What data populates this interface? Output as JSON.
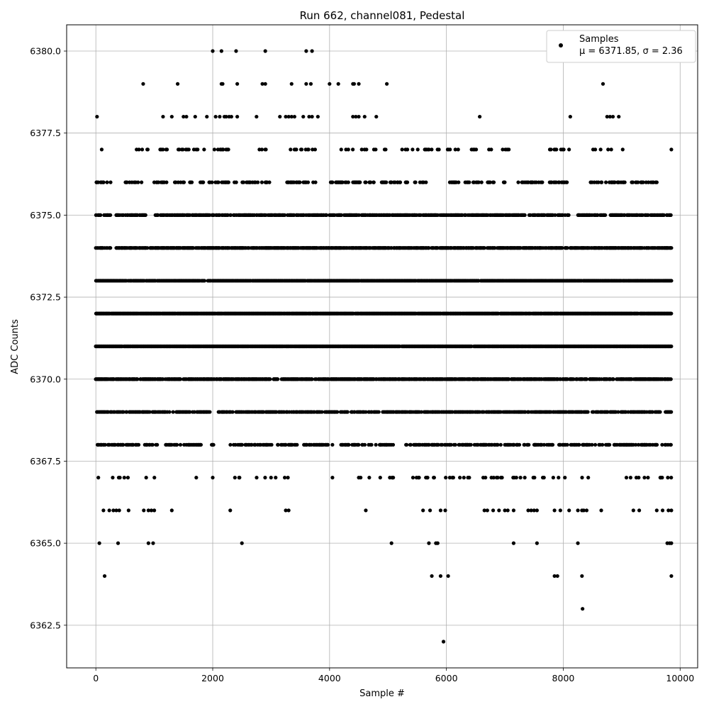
{
  "chart_data": {
    "type": "scatter",
    "title": "Run 662, channel081, Pedestal",
    "xlabel": "Sample #",
    "ylabel": "ADC Counts",
    "xlim": [
      -500,
      10300
    ],
    "ylim": [
      6361.2,
      6380.8
    ],
    "xticks": [
      0,
      2000,
      4000,
      6000,
      8000,
      10000
    ],
    "xtick_labels": [
      "0",
      "2000",
      "4000",
      "6000",
      "8000",
      "10000"
    ],
    "yticks": [
      6362.5,
      6365.0,
      6367.5,
      6370.0,
      6372.5,
      6375.0,
      6377.5,
      6380.0
    ],
    "ytick_labels": [
      "6362.5",
      "6365.0",
      "6367.5",
      "6370.0",
      "6372.5",
      "6375.0",
      "6377.5",
      "6380.0"
    ],
    "grid": true,
    "legend": {
      "position": "top-right",
      "entries": [
        {
          "name": "Samples",
          "detail": "μ = 6371.85, σ = 2.36"
        }
      ]
    },
    "marker_color": "#000000",
    "series": [
      {
        "name": "Samples",
        "points": [
          [
            20,
            6378
          ],
          [
            1150,
            6378
          ],
          [
            1300,
            6378
          ],
          [
            1500,
            6378
          ],
          [
            1550,
            6378
          ],
          [
            1700,
            6378
          ],
          [
            1900,
            6378
          ],
          [
            2050,
            6378
          ],
          [
            2120,
            6378
          ],
          [
            2200,
            6378
          ],
          [
            2230,
            6378
          ],
          [
            2280,
            6378
          ],
          [
            2320,
            6378
          ],
          [
            2420,
            6378
          ],
          [
            2750,
            6378
          ],
          [
            3150,
            6378
          ],
          [
            3250,
            6378
          ],
          [
            3300,
            6378
          ],
          [
            3350,
            6378
          ],
          [
            3400,
            6378
          ],
          [
            3550,
            6378
          ],
          [
            3650,
            6378
          ],
          [
            3700,
            6378
          ],
          [
            3800,
            6378
          ],
          [
            4400,
            6378
          ],
          [
            4450,
            6378
          ],
          [
            4500,
            6378
          ],
          [
            4600,
            6378
          ],
          [
            4800,
            6378
          ],
          [
            6570,
            6378
          ],
          [
            8120,
            6378
          ],
          [
            8750,
            6378
          ],
          [
            8800,
            6378
          ],
          [
            8850,
            6378
          ],
          [
            8950,
            6378
          ],
          [
            810,
            6379
          ],
          [
            1400,
            6379
          ],
          [
            2150,
            6379
          ],
          [
            2170,
            6379
          ],
          [
            2420,
            6379
          ],
          [
            2850,
            6379
          ],
          [
            2900,
            6379
          ],
          [
            3350,
            6379
          ],
          [
            3600,
            6379
          ],
          [
            3680,
            6379
          ],
          [
            4000,
            6379
          ],
          [
            4150,
            6379
          ],
          [
            4400,
            6379
          ],
          [
            4420,
            6379
          ],
          [
            4500,
            6379
          ],
          [
            4980,
            6379
          ],
          [
            8680,
            6379
          ],
          [
            2000,
            6380
          ],
          [
            2150,
            6380
          ],
          [
            2400,
            6380
          ],
          [
            2900,
            6380
          ],
          [
            3600,
            6380
          ],
          [
            3700,
            6380
          ],
          [
            5950,
            6362
          ],
          [
            8330,
            6363
          ],
          [
            150,
            6364
          ],
          [
            5750,
            6364
          ],
          [
            5900,
            6364
          ],
          [
            6030,
            6364
          ],
          [
            7850,
            6364
          ],
          [
            7900,
            6364
          ],
          [
            8320,
            6364
          ],
          [
            9850,
            6364
          ],
          [
            60,
            6365
          ],
          [
            380,
            6365
          ],
          [
            900,
            6365
          ],
          [
            980,
            6365
          ],
          [
            2500,
            6365
          ],
          [
            5060,
            6365
          ],
          [
            5700,
            6365
          ],
          [
            5820,
            6365
          ],
          [
            5850,
            6365
          ],
          [
            7150,
            6365
          ],
          [
            7550,
            6365
          ],
          [
            8250,
            6365
          ],
          [
            9780,
            6365
          ],
          [
            9820,
            6365
          ],
          [
            9850,
            6365
          ],
          [
            130,
            6366
          ],
          [
            230,
            6366
          ],
          [
            300,
            6366
          ],
          [
            350,
            6366
          ],
          [
            400,
            6366
          ],
          [
            560,
            6366
          ],
          [
            820,
            6366
          ],
          [
            900,
            6366
          ],
          [
            950,
            6366
          ],
          [
            1000,
            6366
          ],
          [
            1300,
            6366
          ],
          [
            2300,
            6366
          ],
          [
            3250,
            6366
          ],
          [
            3300,
            6366
          ],
          [
            4620,
            6366
          ],
          [
            5600,
            6366
          ],
          [
            5720,
            6366
          ],
          [
            5900,
            6366
          ],
          [
            5980,
            6366
          ],
          [
            6650,
            6366
          ],
          [
            6700,
            6366
          ],
          [
            6800,
            6366
          ],
          [
            6900,
            6366
          ],
          [
            7000,
            6366
          ],
          [
            7050,
            6366
          ],
          [
            7150,
            6366
          ],
          [
            7400,
            6366
          ],
          [
            7450,
            6366
          ],
          [
            7500,
            6366
          ],
          [
            7550,
            6366
          ],
          [
            7850,
            6366
          ],
          [
            7950,
            6366
          ],
          [
            8100,
            6366
          ],
          [
            8250,
            6366
          ],
          [
            8320,
            6366
          ],
          [
            8350,
            6366
          ],
          [
            8400,
            6366
          ],
          [
            8650,
            6366
          ],
          [
            9200,
            6366
          ],
          [
            9300,
            6366
          ],
          [
            9600,
            6366
          ],
          [
            9700,
            6366
          ],
          [
            9800,
            6366
          ],
          [
            9850,
            6366
          ]
        ],
        "bands": [
          {
            "y": 6367,
            "density": 0.11,
            "ranges": [
              [
                0,
                40
              ],
              [
                200,
                620
              ],
              [
                850,
                1050
              ],
              [
                1300,
                1320
              ],
              [
                1650,
                1800
              ],
              [
                2000,
                2000
              ],
              [
                2350,
                2900
              ],
              [
                3000,
                3450
              ],
              [
                3950,
                4100
              ],
              [
                4500,
                4700
              ],
              [
                4850,
                5100
              ],
              [
                5350,
                6500
              ],
              [
                6600,
                7350
              ],
              [
                7400,
                8500
              ],
              [
                9050,
                9850
              ]
            ]
          },
          {
            "y": 6368,
            "density": 0.42,
            "ranges": [
              [
                0,
                1050
              ],
              [
                1200,
                1800
              ],
              [
                1950,
                2050
              ],
              [
                2300,
                3450
              ],
              [
                3550,
                4800
              ],
              [
                4850,
                5100
              ],
              [
                5300,
                7450
              ],
              [
                7500,
                8500
              ],
              [
                8550,
                9850
              ]
            ]
          },
          {
            "y": 6369,
            "density": 0.6,
            "ranges": [
              [
                0,
                1950
              ],
              [
                2100,
                2350
              ],
              [
                2400,
                9850
              ]
            ]
          },
          {
            "y": 6370,
            "density": 0.75,
            "ranges": [
              [
                0,
                1450
              ],
              [
                1500,
                3700
              ],
              [
                3750,
                9850
              ]
            ]
          },
          {
            "y": 6371,
            "density": 0.95,
            "ranges": [
              [
                0,
                9850
              ]
            ]
          },
          {
            "y": 6372,
            "density": 0.95,
            "ranges": [
              [
                0,
                9850
              ]
            ]
          },
          {
            "y": 6373,
            "density": 0.85,
            "ranges": [
              [
                0,
                1000
              ],
              [
                1000,
                9850
              ]
            ]
          },
          {
            "y": 6374,
            "density": 0.75,
            "ranges": [
              [
                0,
                250
              ],
              [
                350,
                9850
              ]
            ]
          },
          {
            "y": 6375,
            "density": 0.6,
            "ranges": [
              [
                0,
                250
              ],
              [
                350,
                850
              ],
              [
                1000,
                5300
              ],
              [
                5300,
                8100
              ],
              [
                8250,
                9850
              ]
            ]
          },
          {
            "y": 6376,
            "density": 0.32,
            "ranges": [
              [
                0,
                300
              ],
              [
                500,
                850
              ],
              [
                1000,
                2400
              ],
              [
                2500,
                3000
              ],
              [
                3200,
                3800
              ],
              [
                3950,
                5700
              ],
              [
                6050,
                6600
              ],
              [
                6700,
                7000
              ],
              [
                7200,
                8100
              ],
              [
                8450,
                9600
              ]
            ]
          },
          {
            "y": 6377,
            "density": 0.12,
            "ranges": [
              [
                100,
                100
              ],
              [
                600,
                900
              ],
              [
                1100,
                1900
              ],
              [
                1950,
                2450
              ],
              [
                2600,
                3000
              ],
              [
                3250,
                3850
              ],
              [
                4050,
                5000
              ],
              [
                5000,
                6200
              ],
              [
                6400,
                7200
              ],
              [
                7700,
                8100
              ],
              [
                8500,
                9100
              ],
              [
                9850,
                9850
              ]
            ]
          }
        ]
      }
    ]
  }
}
